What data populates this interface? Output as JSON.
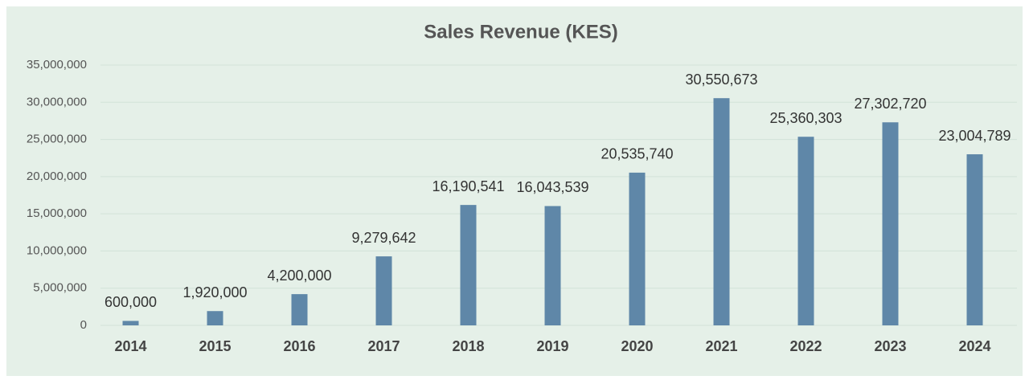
{
  "chart_data": {
    "type": "bar",
    "title": "Sales Revenue (KES)",
    "categories": [
      "2014",
      "2015",
      "2016",
      "2017",
      "2018",
      "2019",
      "2020",
      "2021",
      "2022",
      "2023",
      "2024"
    ],
    "values": [
      600000,
      1920000,
      4200000,
      9279642,
      16190541,
      16043539,
      20535740,
      30550673,
      25360303,
      27302720,
      23004789
    ],
    "value_labels": [
      "600,000",
      "1,920,000",
      "4,200,000",
      "9,279,642",
      "16,190,541",
      "16,043,539",
      "20,535,740",
      "30,550,673",
      "25,360,303",
      "27,302,720",
      "23,004,789"
    ],
    "color": "#5f87a8",
    "ylim": [
      0,
      35000000
    ],
    "yticks": [
      0,
      {
        "value": 5000000,
        "label": "5,000,000"
      },
      {
        "value": 10000000,
        "label": "10,000,000"
      },
      {
        "value": 15000000,
        "label": "15,000,000"
      },
      {
        "value": 20000000,
        "label": "20,000,000"
      },
      {
        "value": 25000000,
        "label": "25,000,000"
      },
      {
        "value": 30000000,
        "label": "30,000,000"
      },
      {
        "value": 35000000,
        "label": "35,000,000"
      }
    ],
    "grid": true
  }
}
